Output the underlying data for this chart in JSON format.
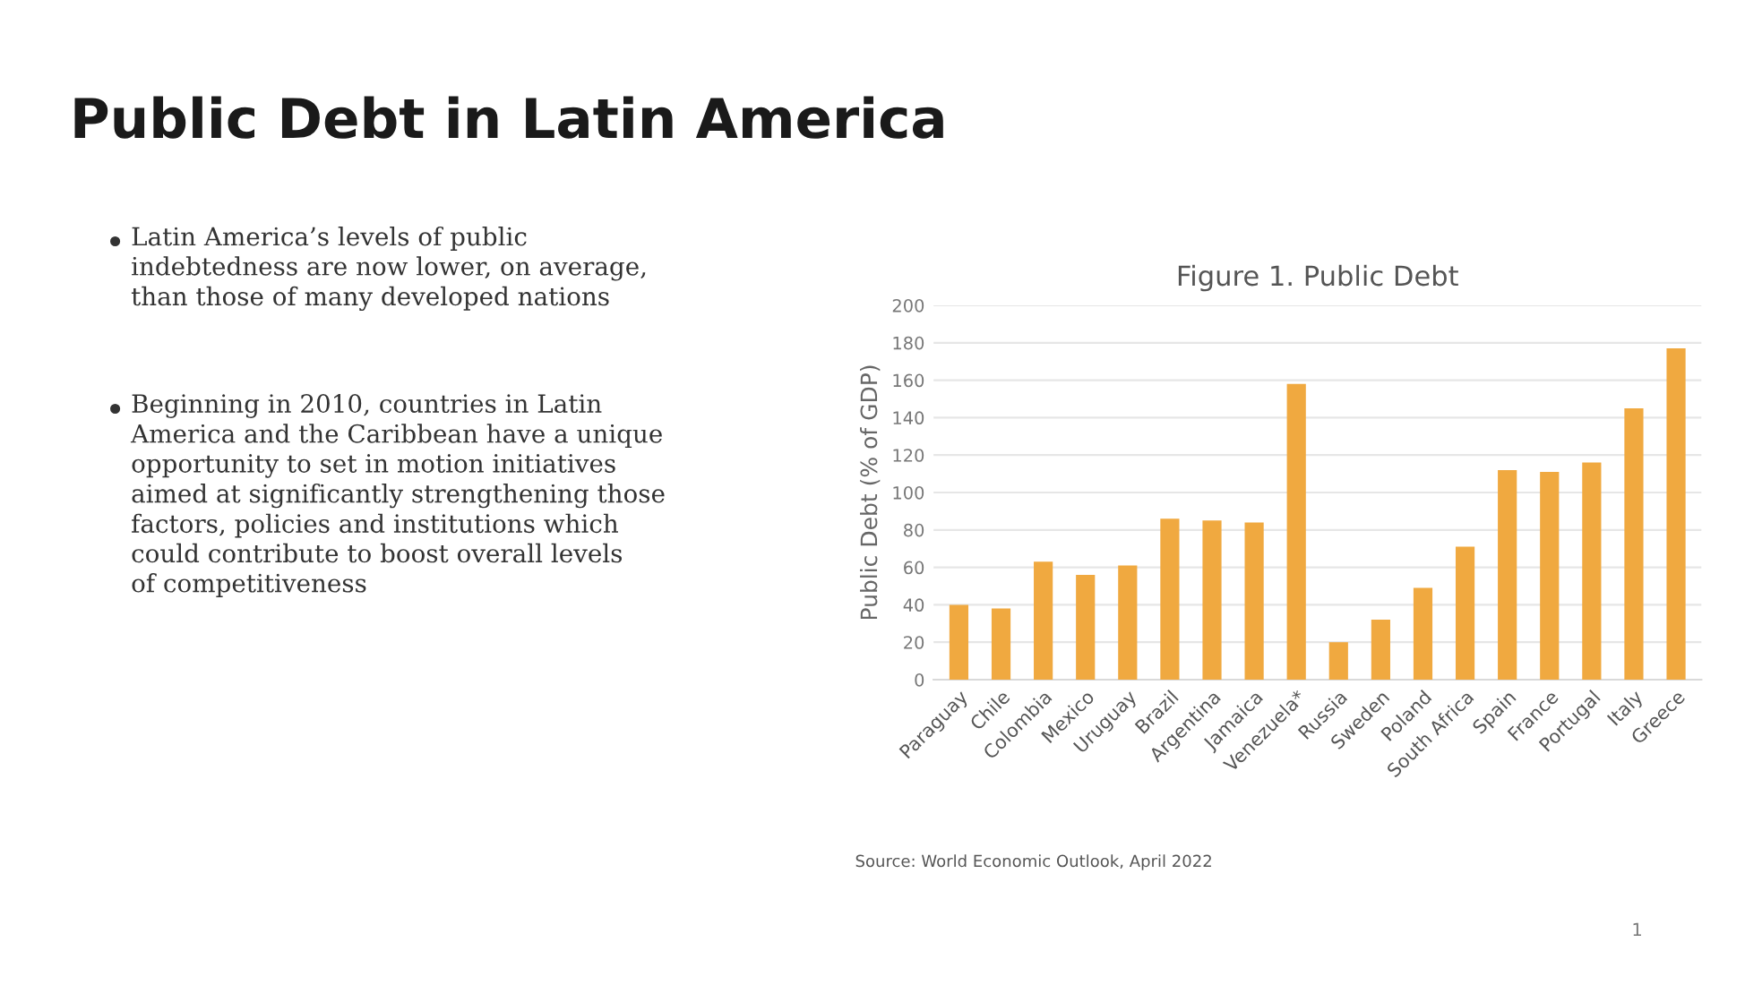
{
  "chart_data": {
    "type": "bar",
    "title": "Public Debt in Latin America",
    "subtitle": "Figure 1. Public Debt",
    "ylabel": "Public Debt (% of GDP)",
    "categories": [
      "Paraguay",
      "Chile",
      "Colombia",
      "Mexico",
      "Uruguay",
      "Brazil",
      "Argentina",
      "Jamaica",
      "Venezuela*",
      "Russia",
      "Sweden",
      "Poland",
      "South Africa",
      "Spain",
      "France",
      "Portugal",
      "Italy",
      "Greece"
    ],
    "values": [
      40,
      38,
      63,
      56,
      61,
      86,
      85,
      84,
      158,
      20,
      32,
      49,
      71,
      112,
      111,
      116,
      145,
      177
    ],
    "color": "#f0a940",
    "ylim": [
      0,
      200
    ],
    "yticks": [
      0,
      20,
      40,
      60,
      80,
      100,
      120,
      140,
      160,
      180,
      200
    ],
    "grid": "y",
    "annotations": [
      "Latin America’s levels of public\nindebtedness are now lower, on average,\nthan those of many developed nations",
      "Beginning in 2010, countries in Latin\nAmerica and the Caribbean have a unique\nopportunity to set in motion initiatives\naimed at significantly strengthening those\nfactors, policies and institutions which\ncould contribute to boost overall levels\nof competitiveness",
      "Source: World Economic Outlook, April 2022",
      "1"
    ]
  }
}
